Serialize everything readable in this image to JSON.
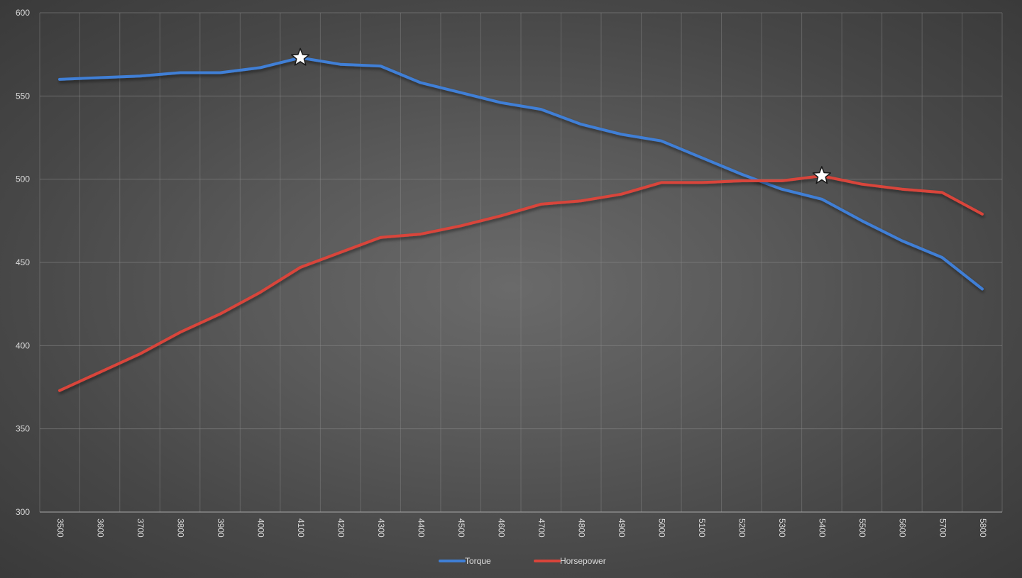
{
  "chart_data": {
    "type": "line",
    "x": [
      3500,
      3600,
      3700,
      3800,
      3900,
      4000,
      4100,
      4200,
      4300,
      4400,
      4500,
      4600,
      4700,
      4800,
      4900,
      5000,
      5100,
      5200,
      5300,
      5400,
      5500,
      5600,
      5700,
      5800
    ],
    "x_tick_labels": [
      "3500",
      "3600",
      "3700",
      "3800",
      "3900",
      "4000",
      "4100",
      "4200",
      "4300",
      "4400",
      "4500",
      "4600",
      "4700",
      "4800",
      "4900",
      "5000",
      "5100",
      "5200",
      "5300",
      "5400",
      "5500",
      "5600",
      "5700",
      "5800"
    ],
    "y_tick_labels": [
      "300",
      "350",
      "400",
      "450",
      "500",
      "550",
      "600"
    ],
    "ylim": [
      300,
      600
    ],
    "series": [
      {
        "name": "Torque",
        "color": "#3f7fd6",
        "values": [
          560,
          561,
          562,
          564,
          564,
          567,
          573,
          569,
          568,
          558,
          552,
          546,
          542,
          533,
          527,
          523,
          513,
          503,
          494,
          488,
          475,
          463,
          453,
          434
        ]
      },
      {
        "name": "Horsepower",
        "color": "#d9443a",
        "values": [
          373,
          384,
          395,
          408,
          419,
          432,
          447,
          456,
          465,
          467,
          472,
          478,
          485,
          487,
          491,
          498,
          498,
          499,
          499,
          502,
          497,
          494,
          492,
          479
        ]
      }
    ],
    "markers": [
      {
        "series": "Torque",
        "x": 4100,
        "y": 573,
        "symbol": "star"
      },
      {
        "series": "Horsepower",
        "x": 5400,
        "y": 502,
        "symbol": "star"
      }
    ],
    "grid": true,
    "legend_position": "bottom-center",
    "title": "",
    "xlabel": "",
    "ylabel": ""
  }
}
